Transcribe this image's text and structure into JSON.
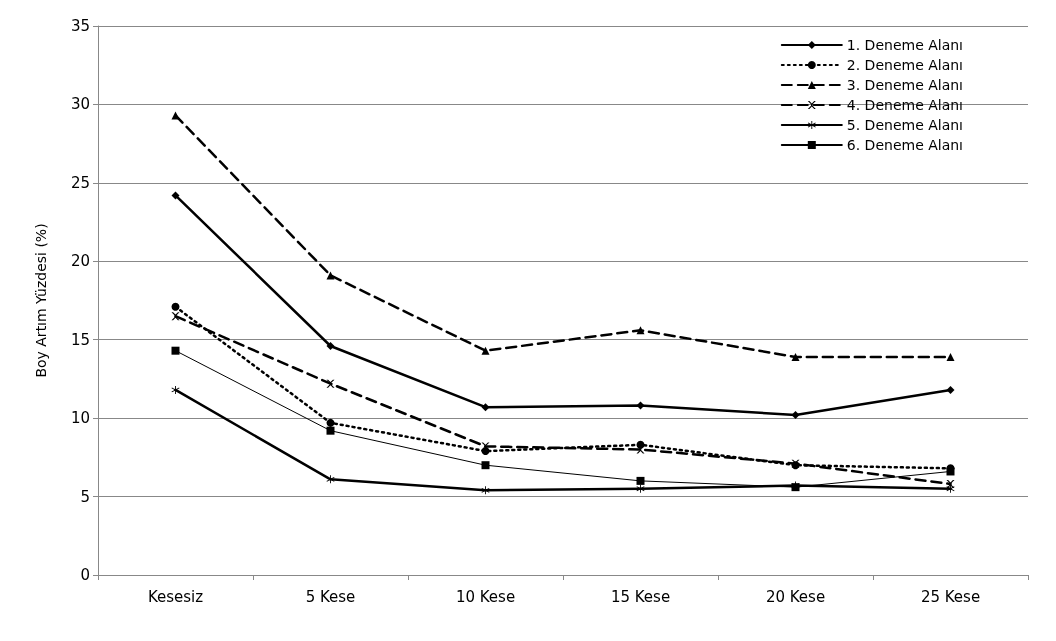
{
  "chart_data": {
    "type": "line",
    "ylabel": "Boy Artım Yüzdesi (%)",
    "categories": [
      "Kesesiz",
      "5 Kese",
      "10 Kese",
      "15 Kese",
      "20 Kese",
      "25 Kese"
    ],
    "ylim": [
      0,
      35
    ],
    "yticks": [
      0,
      5,
      10,
      15,
      20,
      25,
      30,
      35
    ],
    "grid": "y",
    "legend": "top right",
    "series": [
      {
        "name": "1. Deneme Alanı",
        "color": "#000000",
        "marker": "diamond",
        "line_style": "solid",
        "values": [
          24.2,
          14.6,
          10.7,
          10.8,
          10.2,
          11.8
        ]
      },
      {
        "name": "2. Deneme Alanı",
        "color": "#000000",
        "marker": "circle",
        "line_style": "dotted",
        "values": [
          17.1,
          9.7,
          7.9,
          8.3,
          7.0,
          6.8
        ]
      },
      {
        "name": "3. Deneme Alanı",
        "color": "#000000",
        "marker": "triangle",
        "line_style": "dashed",
        "values": [
          29.3,
          19.1,
          14.3,
          15.6,
          13.9,
          13.9
        ]
      },
      {
        "name": "4. Deneme Alanı",
        "color": "#000000",
        "marker": "cross",
        "line_style": "dashed",
        "values": [
          16.5,
          12.2,
          8.2,
          8.0,
          7.1,
          5.8
        ]
      },
      {
        "name": "5. Deneme Alanı",
        "color": "#000000",
        "marker": "star",
        "line_style": "solid",
        "values": [
          11.8,
          6.1,
          5.4,
          5.5,
          5.7,
          5.5
        ]
      },
      {
        "name": "6. Deneme Alanı",
        "color": "#000000",
        "marker": "square",
        "line_style": "solid",
        "values": [
          14.3,
          9.2,
          7.0,
          6.0,
          5.6,
          6.6
        ]
      }
    ]
  }
}
